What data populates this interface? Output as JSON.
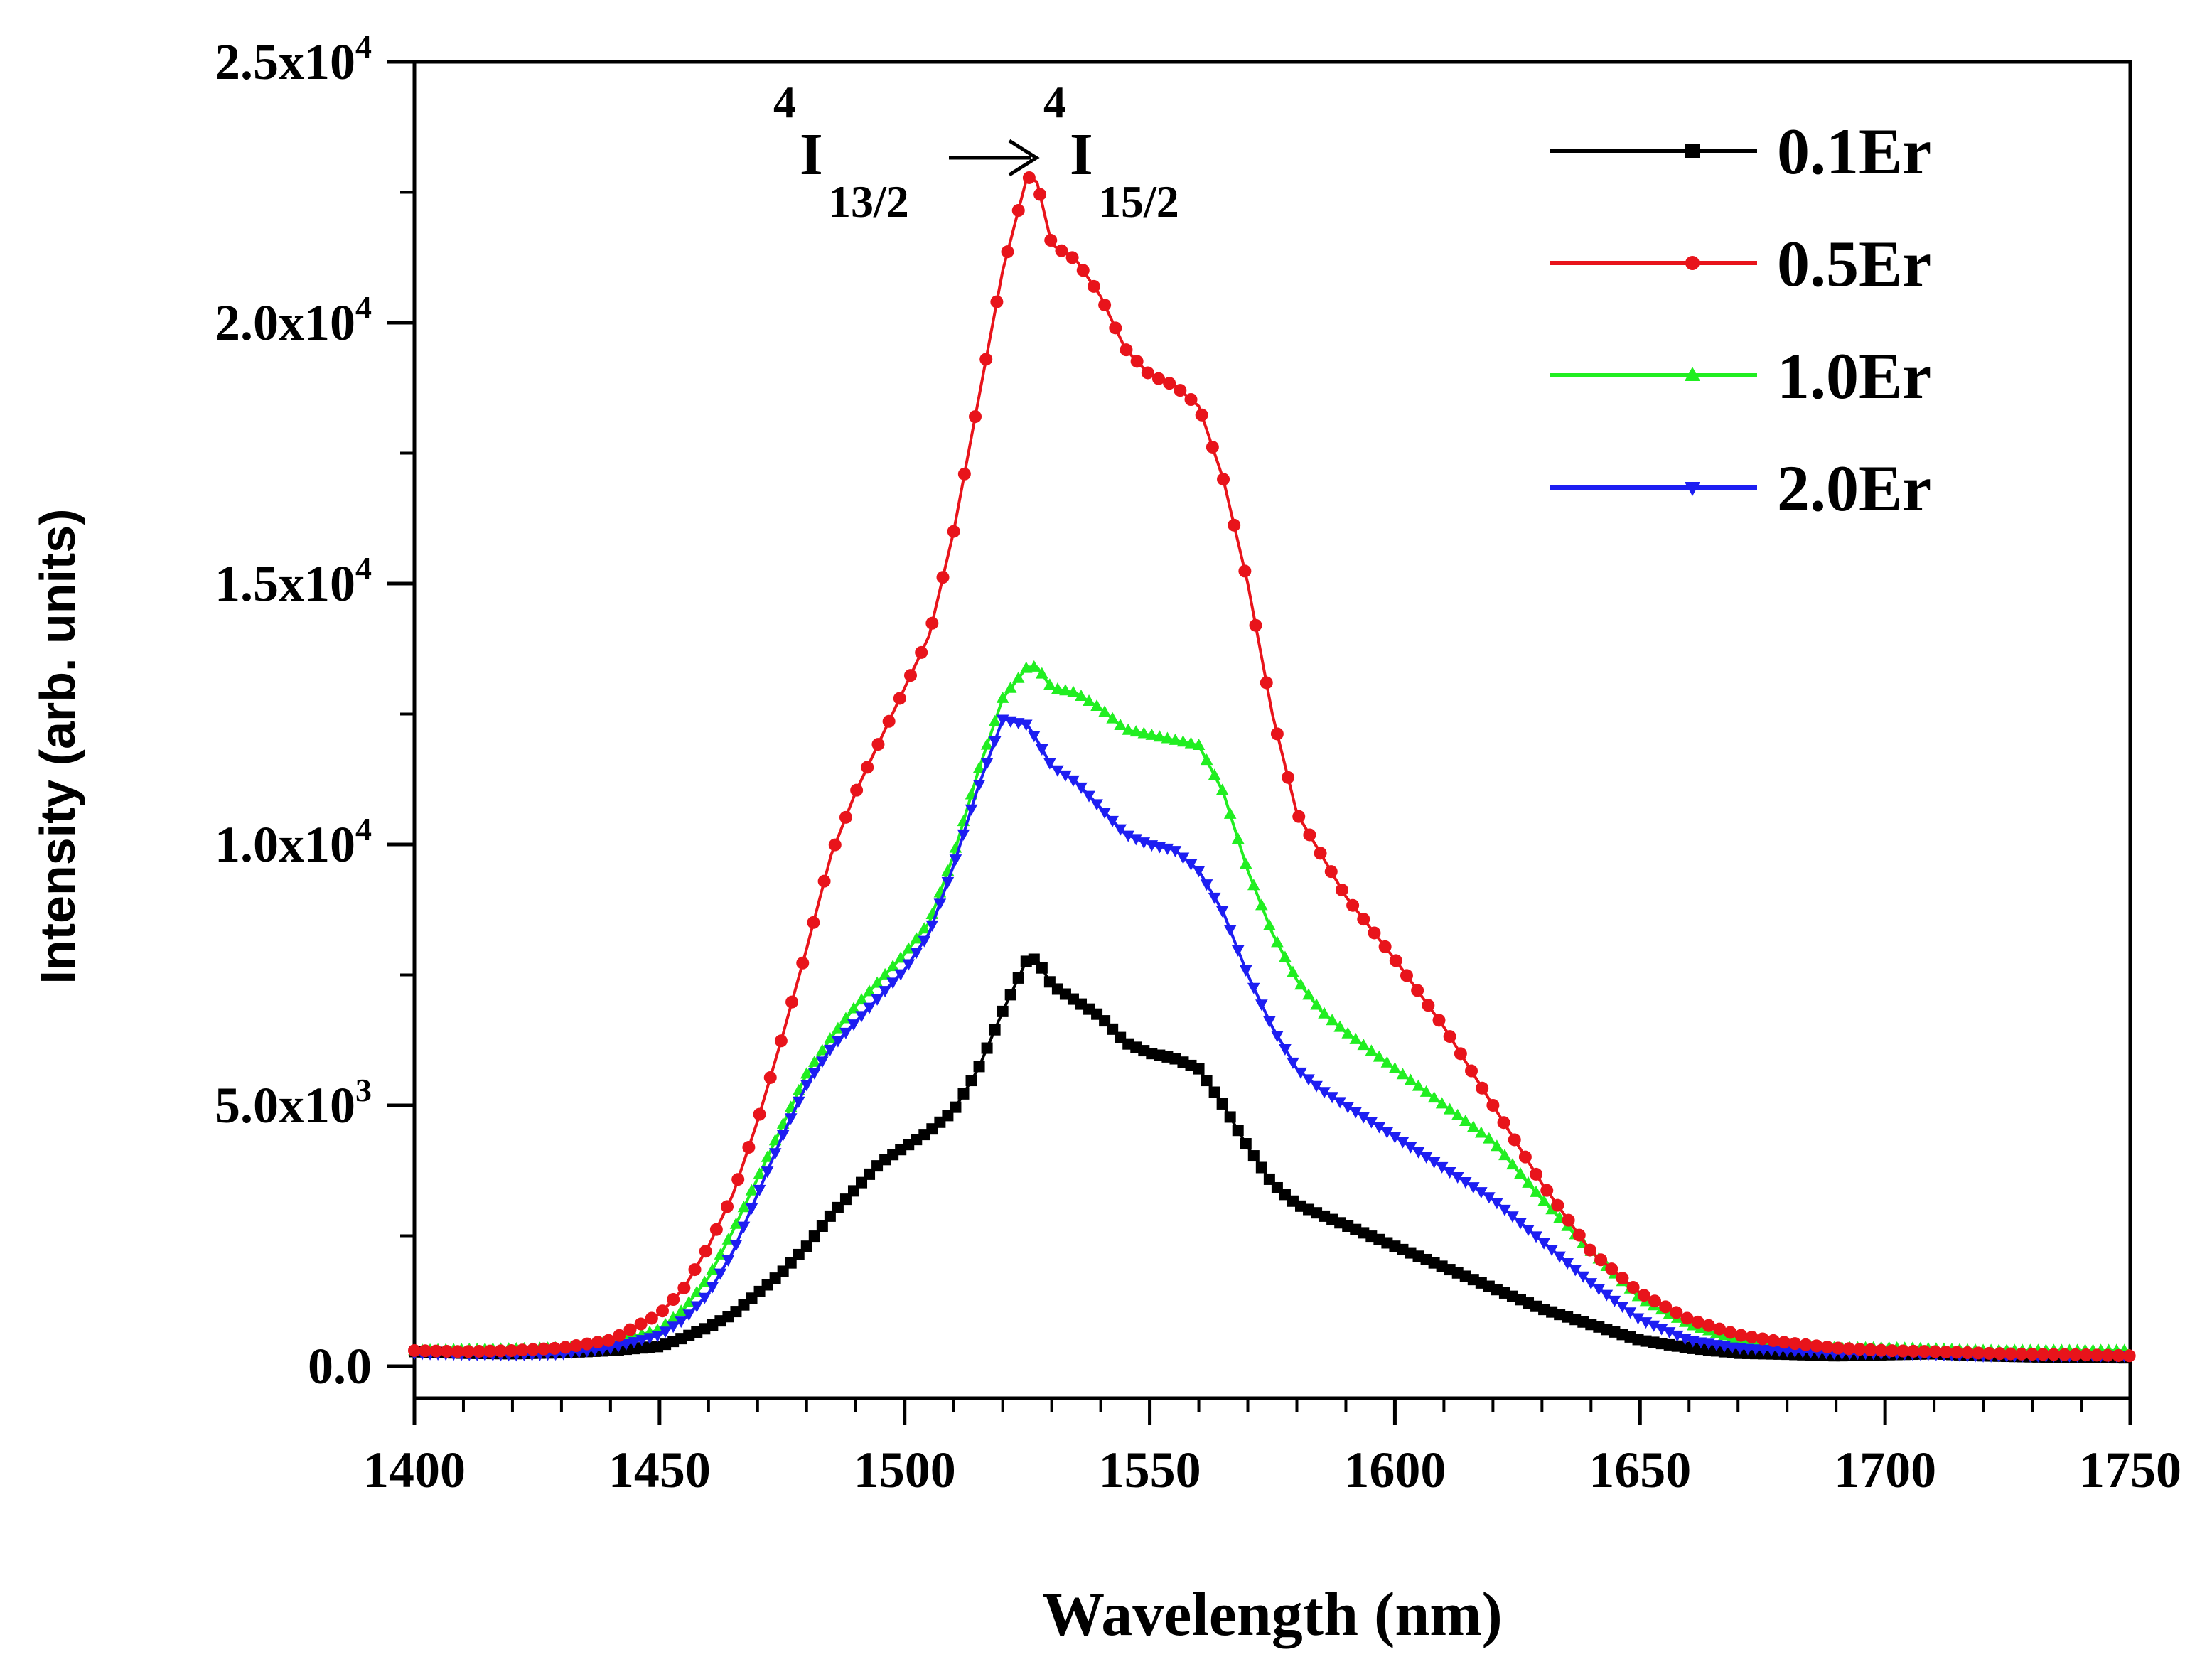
{
  "chart_data": {
    "type": "line",
    "title": "",
    "xlabel": "Wavelength (nm)",
    "ylabel": "Intensity (arb. units)",
    "xlim": [
      1400,
      1750
    ],
    "ylim": [
      0,
      25000
    ],
    "x_ticks": [
      1400,
      1450,
      1500,
      1550,
      1600,
      1650,
      1700,
      1750
    ],
    "x_tick_labels": [
      "1400",
      "1450",
      "1500",
      "1550",
      "1600",
      "1650",
      "1700",
      "1750"
    ],
    "y_ticks": [
      0,
      5000,
      10000,
      15000,
      20000,
      25000
    ],
    "y_tick_labels": [
      {
        "mantissa": "0.0",
        "exponent": ""
      },
      {
        "mantissa": "5.0x10",
        "exponent": "3"
      },
      {
        "mantissa": "1.0x10",
        "exponent": "4"
      },
      {
        "mantissa": "1.5x10",
        "exponent": "4"
      },
      {
        "mantissa": "2.0x10",
        "exponent": "4"
      },
      {
        "mantissa": "2.5x10",
        "exponent": "4"
      }
    ],
    "grid": false,
    "legend_position": "top-right",
    "annotation": {
      "upper_sup": "4",
      "upper_level": "I",
      "upper_sub": "13/2",
      "lower_sup": "4",
      "lower_level": "I",
      "lower_sub": "15/2",
      "arrow": "→"
    },
    "series": [
      {
        "name": "0.1Er",
        "color": "#000000",
        "marker": "square",
        "x": [
          1400,
          1410,
          1420,
          1430,
          1440,
          1450,
          1455,
          1460,
          1465,
          1470,
          1475,
          1480,
          1485,
          1490,
          1495,
          1500,
          1505,
          1510,
          1515,
          1520,
          1525,
          1527,
          1530,
          1535,
          1540,
          1545,
          1550,
          1555,
          1560,
          1565,
          1570,
          1575,
          1580,
          1585,
          1590,
          1600,
          1610,
          1620,
          1630,
          1640,
          1650,
          1660,
          1670,
          1680,
          1690,
          1700,
          1710,
          1720,
          1730,
          1740,
          1750
        ],
        "values": [
          280,
          250,
          240,
          260,
          300,
          380,
          550,
          750,
          1000,
          1400,
          1800,
          2300,
          2900,
          3400,
          3900,
          4200,
          4500,
          4900,
          5700,
          6800,
          7800,
          7800,
          7300,
          7000,
          6700,
          6200,
          6000,
          5900,
          5700,
          5000,
          4200,
          3500,
          3100,
          2900,
          2700,
          2300,
          1900,
          1500,
          1100,
          800,
          500,
          350,
          250,
          230,
          200,
          220,
          240,
          200,
          180,
          170,
          160
        ]
      },
      {
        "name": "0.5Er",
        "color": "#e8141b",
        "marker": "circle",
        "x": [
          1400,
          1410,
          1420,
          1430,
          1440,
          1450,
          1455,
          1460,
          1465,
          1470,
          1475,
          1480,
          1485,
          1490,
          1495,
          1500,
          1505,
          1510,
          1515,
          1520,
          1525,
          1527,
          1530,
          1535,
          1540,
          1545,
          1550,
          1555,
          1560,
          1565,
          1570,
          1575,
          1580,
          1585,
          1590,
          1600,
          1610,
          1620,
          1630,
          1640,
          1650,
          1660,
          1670,
          1680,
          1690,
          1700,
          1710,
          1720,
          1730,
          1740,
          1750
        ],
        "values": [
          300,
          280,
          300,
          350,
          500,
          1000,
          1500,
          2300,
          3300,
          4700,
          6300,
          8000,
          9800,
          11000,
          12000,
          13000,
          14000,
          16000,
          18500,
          21000,
          22800,
          22700,
          21500,
          21200,
          20500,
          19500,
          19000,
          18800,
          18400,
          17000,
          15000,
          12500,
          10600,
          9800,
          9000,
          7800,
          6500,
          5000,
          3500,
          2200,
          1400,
          900,
          600,
          450,
          350,
          300,
          280,
          250,
          230,
          220,
          200
        ]
      },
      {
        "name": "1.0Er",
        "color": "#21ee21",
        "marker": "triangle-up",
        "x": [
          1400,
          1410,
          1420,
          1430,
          1440,
          1450,
          1455,
          1460,
          1465,
          1470,
          1475,
          1480,
          1485,
          1490,
          1495,
          1500,
          1505,
          1510,
          1515,
          1520,
          1525,
          1527,
          1530,
          1535,
          1540,
          1545,
          1550,
          1555,
          1560,
          1565,
          1570,
          1575,
          1580,
          1585,
          1590,
          1600,
          1610,
          1620,
          1630,
          1640,
          1650,
          1660,
          1670,
          1680,
          1690,
          1700,
          1710,
          1720,
          1730,
          1740,
          1750
        ],
        "values": [
          300,
          320,
          330,
          350,
          450,
          700,
          1100,
          1700,
          2600,
          3600,
          4600,
          5600,
          6300,
          6900,
          7400,
          7900,
          8500,
          9800,
          11400,
          12800,
          13400,
          13400,
          13000,
          12900,
          12600,
          12200,
          12100,
          12000,
          11900,
          11000,
          9500,
          8300,
          7400,
          6800,
          6400,
          5700,
          5000,
          4300,
          3200,
          2200,
          1300,
          800,
          500,
          400,
          350,
          350,
          330,
          300,
          300,
          300,
          300
        ]
      },
      {
        "name": "2.0Er",
        "color": "#1d1ef2",
        "marker": "triangle-down",
        "x": [
          1400,
          1410,
          1420,
          1430,
          1440,
          1450,
          1455,
          1460,
          1465,
          1470,
          1475,
          1480,
          1485,
          1490,
          1495,
          1500,
          1505,
          1510,
          1515,
          1520,
          1525,
          1527,
          1530,
          1535,
          1540,
          1545,
          1550,
          1555,
          1560,
          1565,
          1570,
          1575,
          1580,
          1585,
          1590,
          1600,
          1610,
          1620,
          1630,
          1640,
          1650,
          1660,
          1670,
          1680,
          1690,
          1700,
          1710,
          1720,
          1730,
          1740,
          1750
        ],
        "values": [
          250,
          230,
          220,
          240,
          350,
          600,
          900,
          1400,
          2200,
          3300,
          4400,
          5400,
          6100,
          6600,
          7100,
          7600,
          8300,
          9600,
          11100,
          12400,
          12300,
          12000,
          11500,
          11200,
          10700,
          10200,
          10000,
          9900,
          9500,
          8700,
          7500,
          6500,
          5700,
          5300,
          5000,
          4400,
          3800,
          3200,
          2400,
          1600,
          900,
          500,
          350,
          300,
          250,
          250,
          230,
          200,
          200,
          200,
          200
        ]
      }
    ]
  }
}
